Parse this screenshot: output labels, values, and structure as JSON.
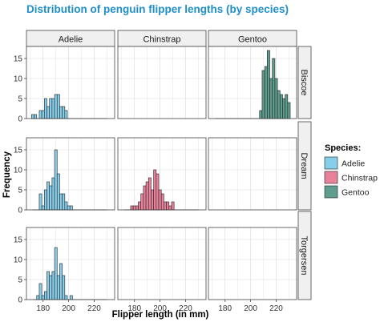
{
  "chart_data": {
    "type": "bar",
    "title": "Distribution of penguin flipper lengths (by species)",
    "xlabel": "Flipper length (in mm)",
    "ylabel": "Frequency",
    "xlim": [
      167,
      236
    ],
    "ylim": [
      0,
      18
    ],
    "x_ticks": [
      180,
      200,
      220
    ],
    "y_ticks": [
      0,
      5,
      10,
      15
    ],
    "bin_width": 2,
    "grid": true,
    "legend_position": "right",
    "column_labels": [
      "Adelie",
      "Chinstrap",
      "Gentoo"
    ],
    "row_labels": [
      "Biscoe",
      "Dream",
      "Torgersen"
    ],
    "legend": {
      "title": "Species:",
      "items": [
        {
          "label": "Adelie",
          "color": "#87CEEB"
        },
        {
          "label": "Chinstrap",
          "color": "#E8829B"
        },
        {
          "label": "Gentoo",
          "color": "#5F9E8F"
        }
      ]
    },
    "colors": {
      "title": "#1f8fc8",
      "panel_bg": "#ffffff",
      "grid": "#d9d9d9",
      "strip_bg": "#f0f0f0",
      "strip_border": "#444444",
      "bar_outline": "#222222"
    },
    "panels": [
      {
        "species": "Adelie",
        "island": "Biscoe",
        "bins": [
          [
            172,
            1
          ],
          [
            174,
            1
          ],
          [
            178,
            2
          ],
          [
            180,
            2
          ],
          [
            182,
            5
          ],
          [
            184,
            3
          ],
          [
            186,
            5
          ],
          [
            188,
            5
          ],
          [
            190,
            6
          ],
          [
            192,
            6
          ],
          [
            194,
            3
          ],
          [
            196,
            3
          ],
          [
            198,
            2
          ]
        ]
      },
      {
        "species": "Chinstrap",
        "island": "Biscoe",
        "bins": []
      },
      {
        "species": "Gentoo",
        "island": "Biscoe",
        "bins": [
          [
            208,
            2
          ],
          [
            210,
            12
          ],
          [
            212,
            13
          ],
          [
            214,
            17
          ],
          [
            216,
            10
          ],
          [
            218,
            15
          ],
          [
            220,
            10
          ],
          [
            222,
            7
          ],
          [
            224,
            6
          ],
          [
            226,
            5
          ],
          [
            228,
            6
          ],
          [
            230,
            4
          ]
        ]
      },
      {
        "species": "Adelie",
        "island": "Dream",
        "bins": [
          [
            178,
            4
          ],
          [
            180,
            1
          ],
          [
            182,
            5
          ],
          [
            184,
            7
          ],
          [
            186,
            6
          ],
          [
            188,
            8
          ],
          [
            190,
            15
          ],
          [
            192,
            9
          ],
          [
            194,
            4
          ],
          [
            196,
            4
          ],
          [
            198,
            2
          ],
          [
            200,
            1
          ],
          [
            202,
            1
          ]
        ]
      },
      {
        "species": "Chinstrap",
        "island": "Dream",
        "bins": [
          [
            178,
            1
          ],
          [
            180,
            1
          ],
          [
            182,
            1
          ],
          [
            184,
            2
          ],
          [
            186,
            4
          ],
          [
            188,
            6
          ],
          [
            190,
            7
          ],
          [
            192,
            8
          ],
          [
            194,
            5
          ],
          [
            196,
            10
          ],
          [
            198,
            9
          ],
          [
            200,
            5
          ],
          [
            202,
            4
          ],
          [
            204,
            2
          ],
          [
            206,
            2
          ],
          [
            208,
            1
          ],
          [
            210,
            2
          ]
        ]
      },
      {
        "species": "Gentoo",
        "island": "Dream",
        "bins": []
      },
      {
        "species": "Adelie",
        "island": "Torgersen",
        "bins": [
          [
            176,
            1
          ],
          [
            178,
            4
          ],
          [
            180,
            1
          ],
          [
            182,
            2
          ],
          [
            184,
            7
          ],
          [
            186,
            6
          ],
          [
            188,
            7
          ],
          [
            190,
            13
          ],
          [
            192,
            6
          ],
          [
            194,
            9
          ],
          [
            196,
            6
          ],
          [
            198,
            1
          ],
          [
            202,
            1
          ]
        ]
      },
      {
        "species": "Chinstrap",
        "island": "Torgersen",
        "bins": []
      },
      {
        "species": "Gentoo",
        "island": "Torgersen",
        "bins": []
      }
    ]
  }
}
